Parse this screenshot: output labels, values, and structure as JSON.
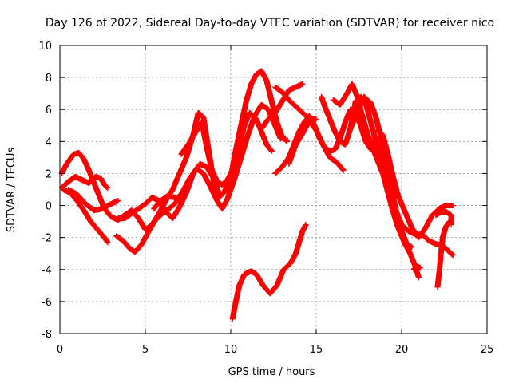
{
  "chart_data": {
    "type": "scatter",
    "title": "Day 126 of 2022, Sidereal Day-to-day VTEC variation (SDTVAR) for receiver nico",
    "xlabel": "GPS time / hours",
    "ylabel": "SDTVAR / TECUs",
    "xlim": [
      0,
      25
    ],
    "ylim": [
      -8,
      10
    ],
    "xticks": [
      "0",
      "5",
      "10",
      "15",
      "20",
      "25"
    ],
    "yticks": [
      "-8",
      "-6",
      "-4",
      "-2",
      "0",
      "2",
      "4",
      "6",
      "8",
      "10"
    ],
    "grid": true,
    "marker": "+",
    "color": "#ff0000",
    "series": [
      {
        "name": "s1",
        "points": [
          [
            0.1,
            2.0
          ],
          [
            0.4,
            2.6
          ],
          [
            0.8,
            3.2
          ],
          [
            1.1,
            3.3
          ],
          [
            1.4,
            2.9
          ],
          [
            1.7,
            2.2
          ],
          [
            2.0,
            1.4
          ],
          [
            2.3,
            0.6
          ],
          [
            2.6,
            -0.2
          ],
          [
            3.0,
            -0.7
          ],
          [
            3.4,
            -0.9
          ],
          [
            3.8,
            -0.6
          ],
          [
            4.2,
            -0.3
          ],
          [
            4.6,
            -0.8
          ],
          [
            5.0,
            -1.5
          ],
          [
            5.4,
            -1.2
          ],
          [
            5.8,
            -0.5
          ],
          [
            6.2,
            0.3
          ],
          [
            6.6,
            1.0
          ],
          [
            7.0,
            2.0
          ],
          [
            7.4,
            3.0
          ],
          [
            7.8,
            4.4
          ],
          [
            8.1,
            5.8
          ],
          [
            8.4,
            5.5
          ],
          [
            8.7,
            3.5
          ],
          [
            9.0,
            1.5
          ],
          [
            9.3,
            0.5
          ],
          [
            9.6,
            0.8
          ],
          [
            10.0,
            1.8
          ],
          [
            10.3,
            3.5
          ],
          [
            10.6,
            5.0
          ],
          [
            10.9,
            6.5
          ],
          [
            11.2,
            7.6
          ],
          [
            11.5,
            8.2
          ],
          [
            11.8,
            8.4
          ],
          [
            12.1,
            7.8
          ],
          [
            12.4,
            6.5
          ],
          [
            12.7,
            5.2
          ],
          [
            13.0,
            4.3
          ],
          [
            13.3,
            4.0
          ]
        ]
      },
      {
        "name": "s2",
        "points": [
          [
            0.1,
            1.1
          ],
          [
            0.5,
            1.5
          ],
          [
            0.9,
            1.8
          ],
          [
            1.3,
            1.6
          ],
          [
            1.7,
            1.4
          ],
          [
            2.1,
            1.8
          ],
          [
            2.4,
            1.7
          ],
          [
            2.6,
            1.3
          ],
          [
            2.8,
            1.1
          ]
        ]
      },
      {
        "name": "s3",
        "points": [
          [
            0.2,
            1.0
          ],
          [
            0.6,
            0.8
          ],
          [
            1.0,
            0.3
          ],
          [
            1.4,
            -0.3
          ],
          [
            1.8,
            -1.0
          ],
          [
            2.2,
            -1.5
          ],
          [
            2.6,
            -2.0
          ],
          [
            2.8,
            -2.3
          ]
        ]
      },
      {
        "name": "s4",
        "points": [
          [
            0.5,
            1.0
          ],
          [
            1.0,
            0.7
          ],
          [
            1.5,
            0.1
          ],
          [
            2.0,
            -0.3
          ],
          [
            2.5,
            -0.2
          ],
          [
            3.0,
            0.1
          ],
          [
            3.4,
            0.3
          ]
        ]
      },
      {
        "name": "s5",
        "points": [
          [
            3.4,
            -0.8
          ],
          [
            3.8,
            -0.8
          ],
          [
            4.2,
            -0.5
          ],
          [
            4.6,
            -0.2
          ],
          [
            5.0,
            0.1
          ],
          [
            5.4,
            0.5
          ],
          [
            5.8,
            0.3
          ],
          [
            6.2,
            -0.4
          ],
          [
            6.6,
            -0.8
          ],
          [
            7.0,
            -0.1
          ],
          [
            7.4,
            0.8
          ],
          [
            7.8,
            2.0
          ],
          [
            8.2,
            2.6
          ],
          [
            8.6,
            2.4
          ],
          [
            9.0,
            1.7
          ],
          [
            9.3,
            0.8
          ]
        ]
      },
      {
        "name": "s6",
        "points": [
          [
            3.3,
            -1.9
          ],
          [
            3.7,
            -2.2
          ],
          [
            4.1,
            -2.7
          ],
          [
            4.4,
            -2.9
          ],
          [
            4.8,
            -2.4
          ],
          [
            5.2,
            -1.6
          ],
          [
            5.6,
            -0.9
          ],
          [
            6.0,
            -0.5
          ],
          [
            6.4,
            -0.2
          ],
          [
            6.8,
            0.2
          ],
          [
            7.2,
            0.9
          ],
          [
            7.6,
            1.7
          ],
          [
            8.0,
            2.3
          ],
          [
            8.4,
            2.0
          ],
          [
            8.8,
            1.2
          ],
          [
            9.2,
            0.3
          ],
          [
            9.5,
            -0.2
          ],
          [
            9.8,
            0.4
          ],
          [
            10.2,
            1.6
          ],
          [
            10.6,
            3.0
          ],
          [
            11.0,
            4.4
          ],
          [
            11.4,
            5.6
          ],
          [
            11.8,
            6.3
          ],
          [
            12.2,
            6.0
          ],
          [
            12.6,
            5.0
          ],
          [
            12.9,
            4.2
          ],
          [
            13.2,
            4.2
          ]
        ]
      },
      {
        "name": "s7",
        "points": [
          [
            5.5,
            -0.2
          ],
          [
            5.9,
            0.3
          ],
          [
            6.3,
            0.6
          ],
          [
            6.7,
            0.5
          ],
          [
            7.1,
            0.3
          ]
        ]
      },
      {
        "name": "s8",
        "points": [
          [
            7.1,
            3.2
          ],
          [
            7.5,
            3.8
          ],
          [
            7.9,
            4.5
          ],
          [
            8.3,
            5.2
          ],
          [
            8.6,
            3.6
          ],
          [
            8.9,
            2.2
          ],
          [
            9.2,
            1.5
          ],
          [
            9.5,
            1.3
          ],
          [
            9.8,
            1.6
          ],
          [
            10.1,
            2.2
          ],
          [
            10.4,
            3.4
          ],
          [
            10.8,
            5.0
          ],
          [
            11.1,
            5.8
          ],
          [
            11.5,
            5.4
          ],
          [
            11.8,
            4.6
          ],
          [
            12.1,
            3.8
          ],
          [
            12.4,
            3.4
          ]
        ]
      },
      {
        "name": "s9",
        "points": [
          [
            10.1,
            -7.1
          ],
          [
            10.3,
            -6.0
          ],
          [
            10.5,
            -5.0
          ],
          [
            10.8,
            -4.3
          ],
          [
            11.2,
            -4.1
          ],
          [
            11.5,
            -4.3
          ],
          [
            11.9,
            -5.0
          ],
          [
            12.3,
            -5.5
          ],
          [
            12.7,
            -5.0
          ],
          [
            13.1,
            -4.0
          ],
          [
            13.5,
            -3.6
          ],
          [
            13.8,
            -3.0
          ],
          [
            14.0,
            -2.3
          ],
          [
            14.2,
            -1.6
          ],
          [
            14.4,
            -1.2
          ]
        ]
      },
      {
        "name": "s10",
        "points": [
          [
            11.8,
            4.8
          ],
          [
            12.2,
            5.4
          ],
          [
            12.6,
            5.8
          ],
          [
            13.0,
            6.5
          ],
          [
            13.4,
            7.2
          ],
          [
            13.8,
            7.4
          ],
          [
            14.2,
            7.6
          ]
        ]
      },
      {
        "name": "s11",
        "points": [
          [
            12.6,
            7.4
          ],
          [
            13.0,
            7.1
          ],
          [
            13.4,
            6.6
          ],
          [
            13.8,
            6.2
          ],
          [
            14.2,
            5.8
          ],
          [
            14.6,
            5.4
          ],
          [
            15.0,
            5.4
          ]
        ]
      },
      {
        "name": "s12",
        "points": [
          [
            12.6,
            2.0
          ],
          [
            13.0,
            2.4
          ],
          [
            13.4,
            3.0
          ],
          [
            13.7,
            3.8
          ],
          [
            14.0,
            4.6
          ],
          [
            14.3,
            5.2
          ],
          [
            14.6,
            5.6
          ],
          [
            14.9,
            5.0
          ],
          [
            15.2,
            4.2
          ],
          [
            15.5,
            3.6
          ],
          [
            15.8,
            3.4
          ],
          [
            16.1,
            3.5
          ],
          [
            16.4,
            4.2
          ],
          [
            16.7,
            5.2
          ],
          [
            17.0,
            6.0
          ],
          [
            17.3,
            5.8
          ],
          [
            17.6,
            5.0
          ],
          [
            17.9,
            4.0
          ],
          [
            18.2,
            3.5
          ]
        ]
      },
      {
        "name": "s13",
        "points": [
          [
            13.4,
            2.6
          ],
          [
            13.8,
            3.8
          ],
          [
            14.2,
            4.5
          ],
          [
            14.6,
            5.3
          ],
          [
            15.0,
            4.7
          ],
          [
            15.4,
            3.8
          ],
          [
            15.8,
            3.0
          ],
          [
            16.2,
            2.7
          ],
          [
            16.6,
            2.2
          ]
        ]
      },
      {
        "name": "s14",
        "points": [
          [
            15.3,
            6.8
          ],
          [
            15.5,
            6.2
          ],
          [
            15.8,
            5.4
          ],
          [
            16.1,
            4.6
          ],
          [
            16.4,
            4.0
          ],
          [
            16.7,
            3.8
          ],
          [
            17.0,
            4.8
          ],
          [
            17.3,
            6.5
          ],
          [
            17.6,
            6.8
          ],
          [
            17.9,
            6.4
          ],
          [
            18.2,
            5.2
          ],
          [
            18.5,
            4.0
          ],
          [
            18.8,
            3.0
          ],
          [
            19.1,
            1.8
          ],
          [
            19.4,
            0.6
          ],
          [
            19.7,
            -0.6
          ],
          [
            20.0,
            -1.6
          ],
          [
            20.3,
            -2.4
          ],
          [
            20.6,
            -2.6
          ]
        ]
      },
      {
        "name": "s15",
        "points": [
          [
            16.0,
            6.6
          ],
          [
            16.4,
            6.3
          ],
          [
            16.8,
            7.0
          ],
          [
            17.1,
            7.6
          ],
          [
            17.4,
            6.8
          ],
          [
            17.7,
            5.6
          ],
          [
            18.0,
            4.5
          ],
          [
            18.3,
            3.6
          ],
          [
            18.6,
            2.8
          ],
          [
            18.9,
            2.0
          ],
          [
            19.2,
            0.8
          ],
          [
            19.5,
            -0.4
          ],
          [
            19.8,
            -1.4
          ],
          [
            20.2,
            -2.4
          ],
          [
            20.5,
            -3.0
          ],
          [
            20.8,
            -3.8
          ],
          [
            21.0,
            -4.5
          ]
        ]
      },
      {
        "name": "s16",
        "points": [
          [
            17.0,
            4.8
          ],
          [
            17.4,
            5.8
          ],
          [
            17.8,
            6.8
          ],
          [
            18.2,
            6.4
          ],
          [
            18.5,
            5.5
          ],
          [
            18.8,
            4.2
          ],
          [
            19.1,
            2.6
          ],
          [
            19.4,
            1.0
          ],
          [
            19.7,
            -0.4
          ],
          [
            20.0,
            -1.2
          ],
          [
            20.4,
            -1.6
          ],
          [
            20.8,
            -1.8
          ],
          [
            21.2,
            -1.8
          ],
          [
            21.6,
            -2.2
          ],
          [
            22.0,
            -2.4
          ],
          [
            22.4,
            -2.5
          ],
          [
            22.7,
            -2.8
          ],
          [
            23.0,
            -3.1
          ]
        ]
      },
      {
        "name": "s17",
        "points": [
          [
            18.6,
            4.7
          ],
          [
            18.9,
            4.4
          ],
          [
            19.2,
            3.2
          ],
          [
            19.5,
            1.8
          ],
          [
            19.8,
            0.6
          ],
          [
            20.2,
            -0.4
          ],
          [
            20.6,
            -1.4
          ],
          [
            21.0,
            -2.0
          ],
          [
            21.4,
            -1.4
          ],
          [
            21.8,
            -0.6
          ],
          [
            22.2,
            -0.2
          ],
          [
            22.6,
            0.0
          ],
          [
            23.0,
            0.0
          ]
        ]
      },
      {
        "name": "s18",
        "points": [
          [
            20.7,
            -4.0
          ],
          [
            20.9,
            -3.8
          ],
          [
            21.1,
            -3.9
          ]
        ]
      },
      {
        "name": "s19",
        "points": [
          [
            22.1,
            -5.1
          ],
          [
            22.2,
            -4.2
          ],
          [
            22.3,
            -3.0
          ],
          [
            22.4,
            -2.0
          ],
          [
            22.6,
            -1.3
          ],
          [
            22.8,
            -1.0
          ]
        ]
      },
      {
        "name": "s20",
        "points": [
          [
            22.0,
            -0.6
          ],
          [
            22.3,
            -0.4
          ],
          [
            22.6,
            -0.4
          ],
          [
            22.9,
            -0.6
          ],
          [
            22.9,
            -1.2
          ]
        ]
      }
    ]
  }
}
